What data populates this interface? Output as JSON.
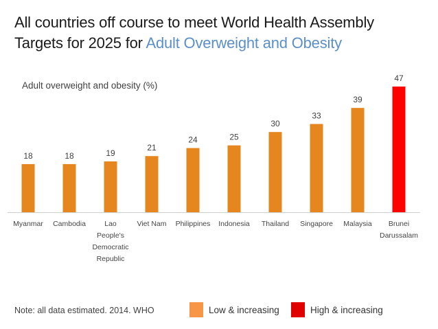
{
  "title": {
    "line1": "All countries off course to meet World Health Assembly",
    "line2_prefix": "Targets for 2025 for ",
    "line2_highlight": "Adult Overweight and Obesity"
  },
  "note": "Note: all data estimated. 2014. WHO",
  "legend": [
    {
      "label": "Low & increasing",
      "color": "#f79646"
    },
    {
      "label": "High & increasing",
      "color": "#e00000"
    }
  ],
  "colors": {
    "low": "#e6861e",
    "high": "#ff0000",
    "title_highlight": "#5b8fc7",
    "axis": "#d0d0d0"
  },
  "chart_data": {
    "type": "bar",
    "title": "Adult overweight and obesity (%)",
    "xlabel": "",
    "ylabel": "Adult overweight and obesity (%)",
    "ylim": [
      0,
      47
    ],
    "grid": false,
    "legend_position": "bottom-right",
    "categories": [
      [
        "Myanmar"
      ],
      [
        "Cambodia"
      ],
      [
        "Lao",
        "People's",
        "Democratic",
        "Republic"
      ],
      [
        "Viet Nam"
      ],
      [
        "Philippines"
      ],
      [
        "Indonesia"
      ],
      [
        "Thailand"
      ],
      [
        "Singapore"
      ],
      [
        "Malaysia"
      ],
      [
        "Brunei",
        "Darussalam"
      ]
    ],
    "values": [
      18,
      18,
      19,
      21,
      24,
      25,
      30,
      33,
      39,
      47
    ],
    "groups": [
      "low",
      "low",
      "low",
      "low",
      "low",
      "low",
      "low",
      "low",
      "low",
      "high"
    ]
  }
}
